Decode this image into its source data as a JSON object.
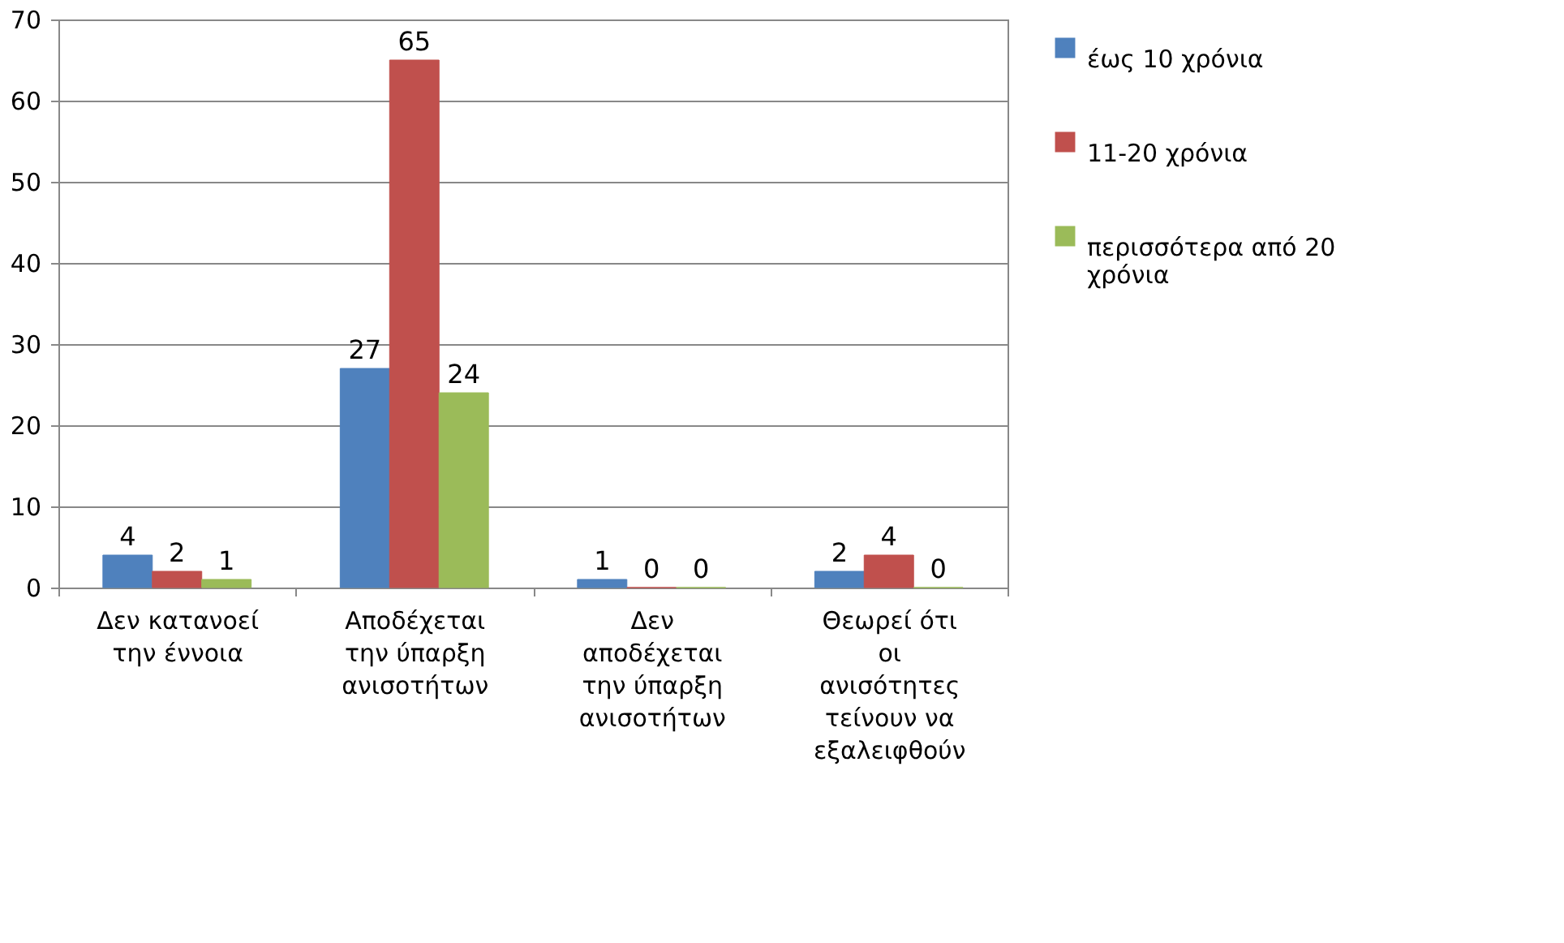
{
  "chart_data": {
    "type": "bar",
    "categories": [
      "Δεν κατανοεί την έννοια",
      "Αποδέχεται την ύπαρξη ανισοτήτων",
      "Δεν αποδέχεται την ύπαρξη ανισοτήτων",
      "Θεωρεί ότι οι ανισότητες τείνουν να εξαλειφθούν"
    ],
    "series": [
      {
        "name": "έως 10 χρόνια",
        "color": "#4f81bd",
        "values": [
          4,
          27,
          1,
          2
        ]
      },
      {
        "name": "11-20 χρόνια",
        "color": "#c0504d",
        "values": [
          2,
          65,
          0,
          4
        ]
      },
      {
        "name": "περισσότερα από 20 χρόνια",
        "color": "#9bbb59",
        "values": [
          1,
          24,
          0,
          0
        ]
      }
    ],
    "ylim": [
      0,
      70
    ],
    "yticks": [
      0,
      10,
      20,
      30,
      40,
      50,
      60,
      70
    ],
    "grid": "y",
    "legend": "right",
    "data_labels": true
  }
}
